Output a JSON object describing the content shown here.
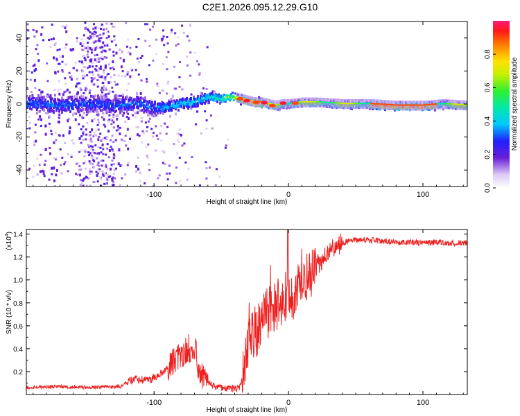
{
  "title": "C2E1.2026.095.12.29.G10",
  "chart_data": [
    {
      "type": "heatmap",
      "xlabel": "Height of straight line (km)",
      "ylabel": "Frequency (Hz)",
      "xlim": [
        -195,
        133
      ],
      "ylim": [
        -50,
        50
      ],
      "xticks": [
        -100,
        0,
        100
      ],
      "yticks": [
        -40,
        -20,
        0,
        20,
        40
      ],
      "ridge": {
        "x": [
          -195,
          -170,
          -150,
          -130,
          -110,
          -100,
          -90,
          -80,
          -70,
          -60,
          -50,
          -45,
          -40,
          -35,
          -30,
          -25,
          -20,
          -15,
          -10,
          -5,
          0,
          10,
          20,
          40,
          60,
          80,
          100,
          115,
          133
        ],
        "y": [
          1,
          0,
          1,
          0,
          1,
          -2,
          -1,
          1,
          2,
          5,
          4,
          5,
          4,
          3,
          2,
          1,
          1,
          0,
          -1,
          0,
          0,
          1,
          1,
          0,
          0,
          -1,
          -1,
          0,
          -1
        ]
      },
      "colorbar": {
        "label": "Normalized spectral amplitude",
        "range": [
          0,
          1
        ],
        "ticks": [
          "0.0",
          "0.2",
          "0.4",
          "0.6",
          "0.8"
        ],
        "tick_values": [
          0,
          0.2,
          0.4,
          0.6,
          0.8
        ]
      }
    },
    {
      "type": "line",
      "xlabel": "Height of straight line (km)",
      "ylabel": "SNR (10 * v/v)",
      "multiplier_label": "(x10",
      "multiplier_exp": "4",
      "xlim": [
        -195,
        133
      ],
      "ylim": [
        0,
        14400
      ],
      "xticks": [
        -100,
        0,
        100
      ],
      "yticks": [
        2000,
        4000,
        6000,
        8000,
        10000,
        12000,
        14000
      ],
      "ytick_labels": [
        "0.2",
        "0.4",
        "0.6",
        "0.8",
        "1.0",
        "1.2",
        "1.4"
      ],
      "series": [
        {
          "name": "SNR",
          "color": "#ee2020",
          "x": [
            -195,
            -170,
            -150,
            -125,
            -115,
            -105,
            -95,
            -88,
            -80,
            -75,
            -70,
            -66,
            -62,
            -55,
            -48,
            -40,
            -36,
            -32,
            -30,
            -28,
            -24,
            -20,
            -16,
            -12,
            -8,
            -4,
            -2,
            0,
            2,
            6,
            10,
            14,
            18,
            22,
            26,
            30,
            35,
            40,
            45,
            50,
            60,
            70,
            80,
            90,
            100,
            110,
            120,
            133
          ],
          "y": [
            600,
            700,
            600,
            700,
            1400,
            1200,
            1800,
            2600,
            3400,
            4000,
            4200,
            1800,
            1200,
            700,
            500,
            500,
            700,
            3000,
            4500,
            5200,
            5500,
            6200,
            7000,
            7500,
            8000,
            8400,
            8600,
            8000,
            8600,
            9000,
            9500,
            10200,
            10800,
            11400,
            11800,
            12400,
            12900,
            13200,
            13400,
            13500,
            13500,
            13400,
            13300,
            13300,
            13200,
            13300,
            13200,
            13200
          ]
        }
      ]
    }
  ]
}
